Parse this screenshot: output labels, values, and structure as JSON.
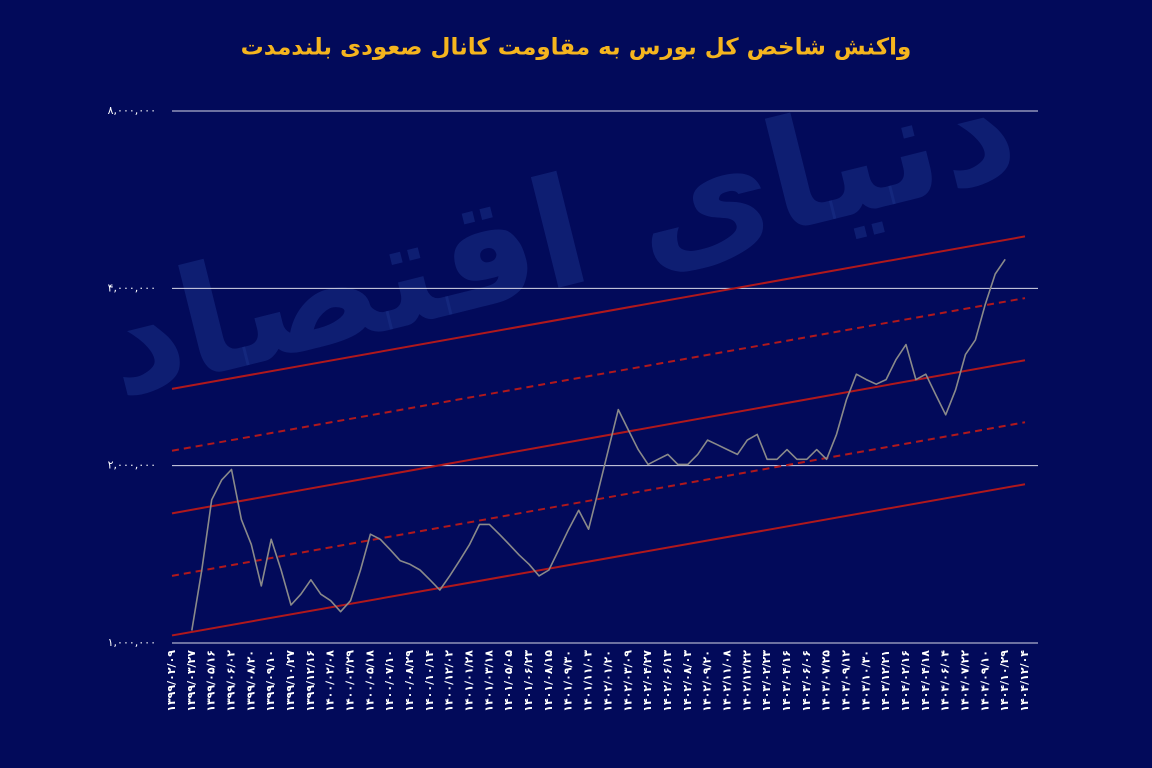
{
  "chart_data": {
    "type": "line",
    "title": "واکنش شاخص کل بورس به مقاومت کانال صعودی بلندمدت",
    "watermark": "دنیای اقتصاد",
    "log_scale": true,
    "grid": true,
    "color": "#8a8a8a",
    "ylim": [
      1000000,
      8000000
    ],
    "yticks": [
      {
        "value": 1000000,
        "label": "۱,۰۰۰,۰۰۰"
      },
      {
        "value": 2000000,
        "label": "۲,۰۰۰,۰۰۰"
      },
      {
        "value": 4000000,
        "label": "۴,۰۰۰,۰۰۰"
      },
      {
        "value": 8000000,
        "label": "۸,۰۰۰,۰۰۰"
      }
    ],
    "categories": [
      "۱۳۹۹/۰۲/۰۹",
      null,
      "۱۳۹۹/۰۳/۲۷",
      null,
      "۱۳۹۹/۰۵/۱۶",
      null,
      "۱۳۹۹/۰۶/۰۲",
      null,
      "۱۳۹۹/۰۸/۲۰",
      null,
      "۱۳۹۹/۰۹/۱۰",
      null,
      "۱۳۹۹/۱۰/۲۷",
      null,
      "۱۳۹۹/۱۲/۱۶",
      null,
      "۱۴۰۰/۰۲/۰۸",
      null,
      "۱۴۰۰/۰۳/۲۹",
      null,
      "۱۴۰۰/۰۵/۱۸",
      null,
      "۱۴۰۰/۰۷/۱۰",
      null,
      "۱۴۰۰/۰۸/۲۹",
      null,
      "۱۴۰۰/۱۰/۱۴",
      null,
      "۱۴۰۰/۱۲/۰۲",
      null,
      "۱۴۰۱/۰۱/۲۸",
      null,
      "۱۴۰۱/۰۳/۱۸",
      null,
      "۱۴۰۱/۰۵/۰۵",
      null,
      "۱۴۰۱/۰۶/۲۳",
      null,
      "۱۴۰۱/۰۸/۱۵",
      null,
      "۱۴۰۱/۰۹/۳۰",
      null,
      "۱۴۰۱/۱۱/۰۳",
      null,
      "۱۴۰۲/۰۱/۲۰",
      null,
      "۱۴۰۲/۰۳/۰۹",
      null,
      "۱۴۰۲/۰۴/۲۷",
      null,
      "۱۴۰۲/۰۶/۱۳",
      null,
      "۱۴۰۲/۰۸/۰۳",
      null,
      "۱۴۰۲/۰۹/۲۰",
      null,
      "۱۴۰۲/۱۱/۰۸",
      null,
      "۱۴۰۲/۱۲/۲۲",
      null,
      "۱۴۰۳/۰۲/۲۳",
      null,
      "۱۴۰۳/۰۴/۱۶",
      null,
      "۱۴۰۳/۰۶/۰۶",
      null,
      "۱۴۰۳/۰۷/۲۵",
      null,
      "۱۴۰۳/۰۹/۱۲",
      null,
      "۱۴۰۳/۱۰/۳۰",
      null,
      "۱۴۰۳/۱۲/۲۱",
      null,
      "۱۴۰۴/۰۲/۱۶",
      null,
      "۱۴۰۴/۰۴/۱۸",
      null,
      "۱۴۰۴/۰۶/۰۴",
      null,
      "۱۴۰۴/۰۷/۲۲",
      null,
      "۱۴۰۴/۰۹/۱۰",
      null,
      "۱۴۰۴/۱۰/۲۹",
      null,
      "۱۴۰۴/۱۲/۰۴"
    ],
    "values": [
      null,
      null,
      1050000,
      1330000,
      1750000,
      1890000,
      1970000,
      1620000,
      1470000,
      1250000,
      1500000,
      1330000,
      1160000,
      1210000,
      1280000,
      1210000,
      1180000,
      1130000,
      1180000,
      1330000,
      1530000,
      1500000,
      1440000,
      1380000,
      1360000,
      1330000,
      1280000,
      1230000,
      1300000,
      1380000,
      1470000,
      1590000,
      1590000,
      1530000,
      1470000,
      1410000,
      1360000,
      1300000,
      1330000,
      1440000,
      1560000,
      1680000,
      1560000,
      1820000,
      2130000,
      2490000,
      2300000,
      2130000,
      2010000,
      2050000,
      2090000,
      2010000,
      2010000,
      2090000,
      2210000,
      2170000,
      2130000,
      2090000,
      2210000,
      2260000,
      2050000,
      2050000,
      2130000,
      2050000,
      2050000,
      2130000,
      2050000,
      2260000,
      2590000,
      2860000,
      2800000,
      2750000,
      2800000,
      3030000,
      3210000,
      2800000,
      2860000,
      2640000,
      2440000,
      2690000,
      3090000,
      3270000,
      3760000,
      4230000,
      4480000,
      null,
      null
    ],
    "channels": [
      {
        "style": "solid",
        "color": "#b0181c",
        "values": [
          2700000,
          4900000
        ]
      },
      {
        "style": "dashed",
        "color": "#b0181c",
        "values": [
          2120000,
          3850000
        ]
      },
      {
        "style": "solid",
        "color": "#b0181c",
        "values": [
          1660000,
          3020000
        ]
      },
      {
        "style": "dashed",
        "color": "#b0181c",
        "values": [
          1300000,
          2370000
        ]
      },
      {
        "style": "solid",
        "color": "#b0181c",
        "values": [
          1030000,
          1860000
        ]
      }
    ]
  }
}
